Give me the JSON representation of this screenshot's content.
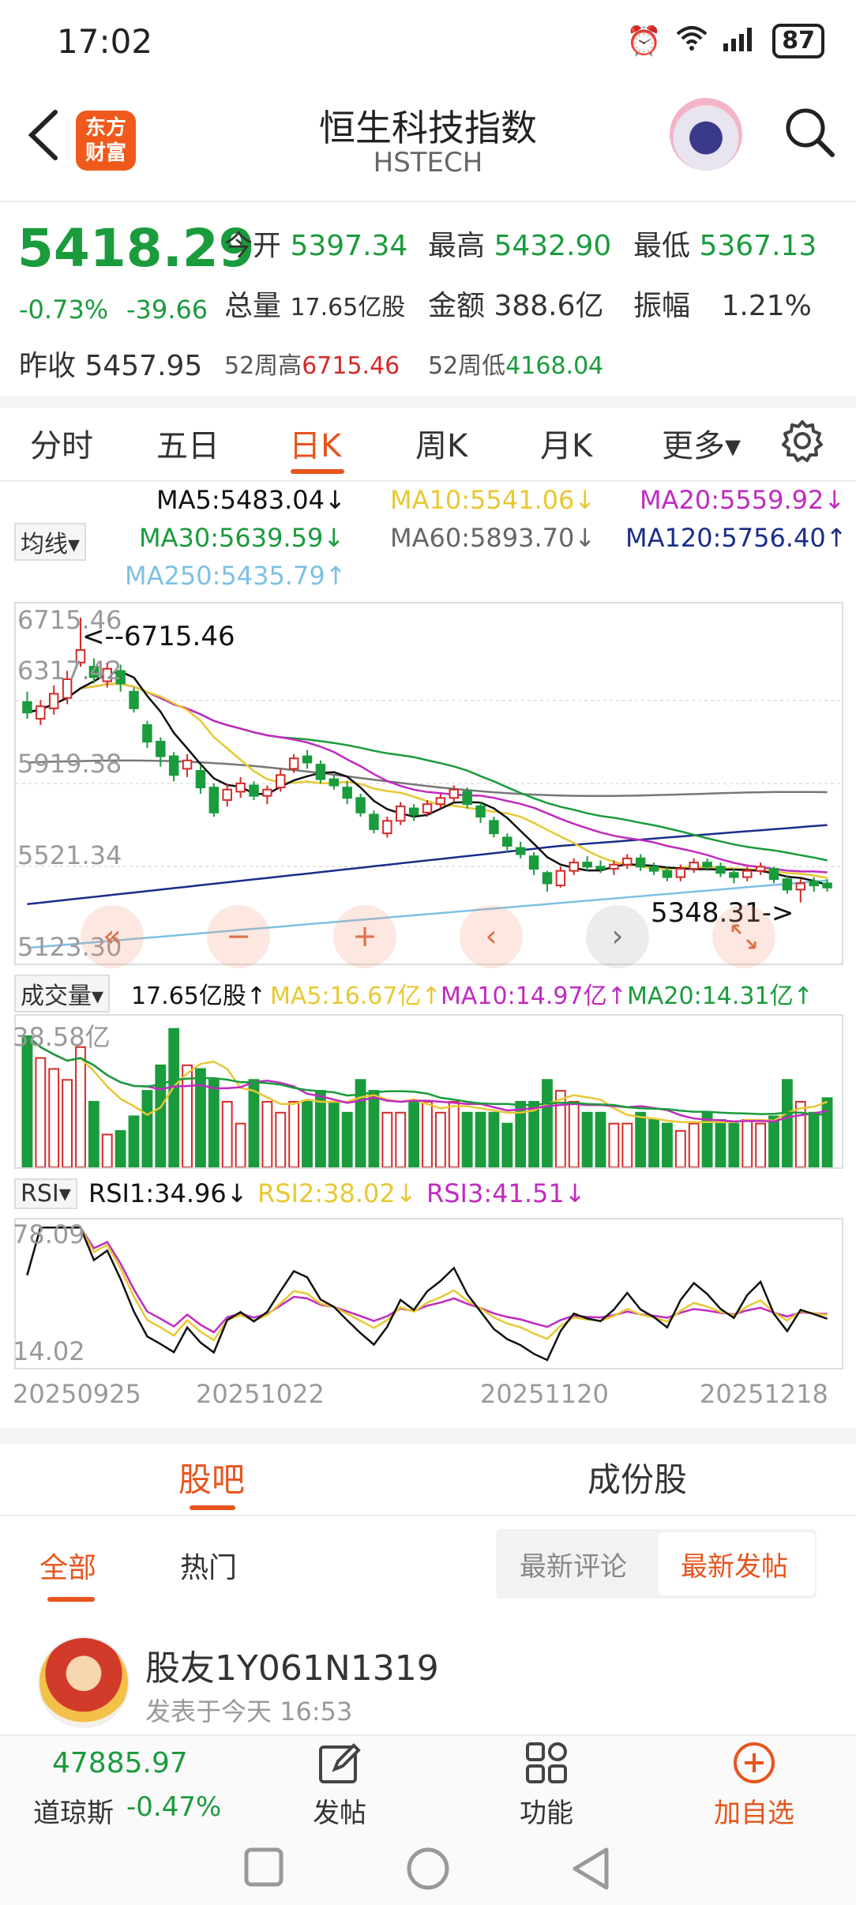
{
  "status": {
    "time": "17:02",
    "battery": "87"
  },
  "header": {
    "title": "恒生科技指数",
    "code": "HSTECH",
    "logo_line1": "东方",
    "logo_line2": "财富"
  },
  "quote": {
    "price": "5418.29",
    "change_pct": "-0.73%",
    "change": "-39.66",
    "open_label": "今开",
    "open": "5397.34",
    "high_label": "最高",
    "high": "5432.90",
    "low_label": "最低",
    "low": "5367.13",
    "volume_label": "总量",
    "volume": "17.65亿股",
    "amount_label": "金额",
    "amount": "388.6亿",
    "amplitude_label": "振幅",
    "amplitude": "1.21%",
    "prev_close_label": "昨收",
    "prev_close": "5457.95",
    "wk52_high_label": "52周高",
    "wk52_high": "6715.46",
    "wk52_low_label": "52周低",
    "wk52_low": "4168.04"
  },
  "tabs": [
    "分时",
    "五日",
    "日K",
    "周K",
    "月K",
    "更多▾"
  ],
  "ma": {
    "selector": "均线▾",
    "ma5": "MA5:5483.04↓",
    "ma10": "MA10:5541.06↓",
    "ma20": "MA20:5559.92↓",
    "ma30": "MA30:5639.59↓",
    "ma60": "MA60:5893.70↓",
    "ma120": "MA120:5756.40↑",
    "ma250": "MA250:5435.79↑"
  },
  "colors": {
    "up": "#d62929",
    "down": "#1a9b3c",
    "ma5": "#111111",
    "ma10": "#e8c832",
    "ma20": "#c02bc0",
    "ma30": "#1a9b3c",
    "ma60": "#777777",
    "ma120": "#1a2d8a",
    "ma250": "#7ec0e4",
    "accent": "#e8541c"
  },
  "chart_data": {
    "type": "candlestick",
    "y_ticks": [
      "6715.46",
      "6317.42",
      "5919.38",
      "5521.34",
      "5123.30"
    ],
    "ylim": [
      5123.3,
      6715.46
    ],
    "high_annotation": "<--6715.46",
    "low_annotation": "5348.31->",
    "x_ticks": [
      "20250925",
      "20251022",
      "20251120",
      "20251218"
    ],
    "candles": [
      [
        6310,
        6260,
        6360,
        6230
      ],
      [
        6230,
        6290,
        6320,
        6200
      ],
      [
        6280,
        6350,
        6390,
        6250
      ],
      [
        6330,
        6420,
        6460,
        6300
      ],
      [
        6500,
        6560,
        6715,
        6480
      ],
      [
        6480,
        6430,
        6520,
        6400
      ],
      [
        6410,
        6470,
        6500,
        6380
      ],
      [
        6460,
        6400,
        6490,
        6360
      ],
      [
        6360,
        6280,
        6380,
        6260
      ],
      [
        6200,
        6120,
        6220,
        6090
      ],
      [
        6120,
        6050,
        6140,
        6000
      ],
      [
        6050,
        5960,
        6070,
        5930
      ],
      [
        5990,
        6030,
        6060,
        5950
      ],
      [
        5980,
        5900,
        6010,
        5870
      ],
      [
        5900,
        5780,
        5920,
        5760
      ],
      [
        5840,
        5890,
        5920,
        5810
      ],
      [
        5880,
        5920,
        5950,
        5850
      ],
      [
        5910,
        5860,
        5930,
        5840
      ],
      [
        5860,
        5890,
        5910,
        5820
      ],
      [
        5900,
        5960,
        5990,
        5880
      ],
      [
        5990,
        6040,
        6060,
        5970
      ],
      [
        6050,
        6020,
        6080,
        5990
      ],
      [
        6010,
        5940,
        6030,
        5920
      ],
      [
        5940,
        5910,
        5960,
        5890
      ],
      [
        5900,
        5850,
        5930,
        5820
      ],
      [
        5850,
        5780,
        5870,
        5760
      ],
      [
        5770,
        5700,
        5790,
        5680
      ],
      [
        5680,
        5740,
        5760,
        5660
      ],
      [
        5740,
        5810,
        5830,
        5720
      ],
      [
        5800,
        5770,
        5820,
        5740
      ],
      [
        5780,
        5820,
        5840,
        5760
      ],
      [
        5820,
        5850,
        5870,
        5800
      ],
      [
        5850,
        5890,
        5910,
        5830
      ],
      [
        5880,
        5820,
        5900,
        5800
      ],
      [
        5810,
        5760,
        5830,
        5730
      ],
      [
        5740,
        5680,
        5760,
        5660
      ],
      [
        5660,
        5620,
        5680,
        5590
      ],
      [
        5610,
        5580,
        5640,
        5560
      ],
      [
        5570,
        5510,
        5590,
        5480
      ],
      [
        5490,
        5440,
        5500,
        5400
      ],
      [
        5430,
        5500,
        5520,
        5420
      ],
      [
        5500,
        5540,
        5560,
        5480
      ],
      [
        5540,
        5520,
        5570,
        5500
      ],
      [
        5520,
        5510,
        5550,
        5490
      ],
      [
        5510,
        5530,
        5550,
        5480
      ],
      [
        5530,
        5560,
        5580,
        5510
      ],
      [
        5560,
        5520,
        5580,
        5500
      ],
      [
        5520,
        5500,
        5540,
        5480
      ],
      [
        5500,
        5470,
        5520,
        5450
      ],
      [
        5470,
        5510,
        5530,
        5450
      ],
      [
        5510,
        5540,
        5560,
        5490
      ],
      [
        5540,
        5520,
        5560,
        5500
      ],
      [
        5520,
        5490,
        5540,
        5470
      ],
      [
        5490,
        5470,
        5510,
        5440
      ],
      [
        5470,
        5500,
        5520,
        5450
      ],
      [
        5500,
        5520,
        5540,
        5480
      ],
      [
        5510,
        5460,
        5520,
        5440
      ],
      [
        5460,
        5410,
        5480,
        5390
      ],
      [
        5410,
        5440,
        5460,
        5348
      ],
      [
        5450,
        5430,
        5470,
        5400
      ],
      [
        5440,
        5420,
        5460,
        5400
      ]
    ],
    "volume": {
      "label": "成交量▾",
      "total": "17.65亿股↑",
      "ma5": "MA5:16.67亿↑",
      "ma10": "MA10:14.97亿↑",
      "ma20": "MA20:14.31亿↑",
      "max_label": "38.58亿",
      "max": 38.58,
      "values": [
        36,
        30,
        27,
        24,
        33,
        18,
        9,
        10,
        14,
        21,
        28,
        38,
        28,
        27,
        24,
        18,
        12,
        24,
        18,
        15,
        18,
        18,
        21,
        18,
        15,
        24,
        21,
        15,
        15,
        18,
        18,
        15,
        18,
        15,
        15,
        15,
        12,
        18,
        18,
        24,
        21,
        18,
        15,
        15,
        12,
        12,
        15,
        13,
        12,
        10,
        12,
        15,
        13,
        12,
        13,
        12,
        14,
        24,
        18,
        15,
        19
      ]
    },
    "rsi": {
      "label": "RSI▾",
      "rsi1": "RSI1:34.96↓",
      "rsi2": "RSI2:38.02↓",
      "rsi3": "RSI3:41.51↓",
      "top": "78.09",
      "bottom": "14.02",
      "ylim": [
        14.02,
        78.09
      ]
    }
  },
  "chart_nav": {
    "first": "«",
    "zoom_out": "−",
    "zoom_in": "+",
    "prev": "‹",
    "next": "›"
  },
  "bottom_tabs": {
    "guba": "股吧",
    "components": "成份股"
  },
  "sub_tabs": {
    "all": "全部",
    "hot": "热门",
    "latest_comment": "最新评论",
    "latest_post": "最新发帖"
  },
  "post": {
    "user": "股友1Y061N1319",
    "time": "发表于今天 16:53"
  },
  "footer": {
    "index_value": "47885.97",
    "index_name": "道琼斯",
    "index_change": "-0.47%",
    "post": "发帖",
    "function": "功能",
    "add": "加自选"
  }
}
